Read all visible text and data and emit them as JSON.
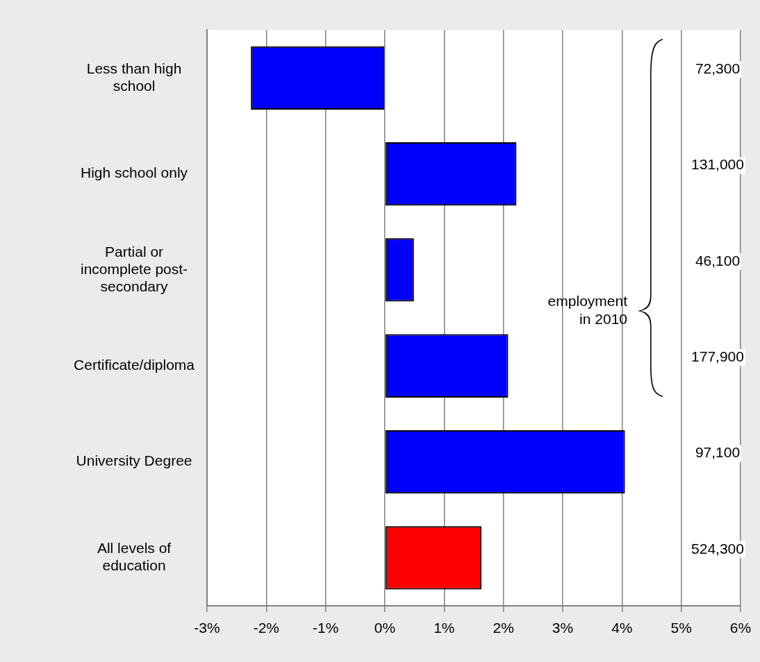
{
  "chart_data": {
    "type": "bar",
    "orientation": "horizontal",
    "categories": [
      "Less than high school",
      "High school only",
      "Partial or incomplete post-secondary",
      "Certificate/diploma",
      "University Degree",
      "All levels of education"
    ],
    "values": [
      -2.26,
      2.22,
      0.49,
      2.08,
      4.05,
      1.63
    ],
    "colors": [
      "#0000ff",
      "#0000ff",
      "#0000ff",
      "#0000ff",
      "#0000ff",
      "#ff0000"
    ],
    "xlim": [
      -3,
      6
    ],
    "xticks": [
      {
        "value": -3,
        "label": "-3%"
      },
      {
        "value": -2,
        "label": "-2%"
      },
      {
        "value": -1,
        "label": "-1%"
      },
      {
        "value": 0,
        "label": "0%"
      },
      {
        "value": 1,
        "label": "1%"
      },
      {
        "value": 2,
        "label": "2%"
      },
      {
        "value": 3,
        "label": "3%"
      },
      {
        "value": 4,
        "label": "4%"
      },
      {
        "value": 5,
        "label": "5%"
      },
      {
        "value": 6,
        "label": "6%"
      }
    ],
    "grid": "x",
    "annotations": [
      "employment in 2010",
      "72,300",
      "131,000",
      "46,100",
      "177,900",
      "97,100",
      "524,300"
    ]
  }
}
